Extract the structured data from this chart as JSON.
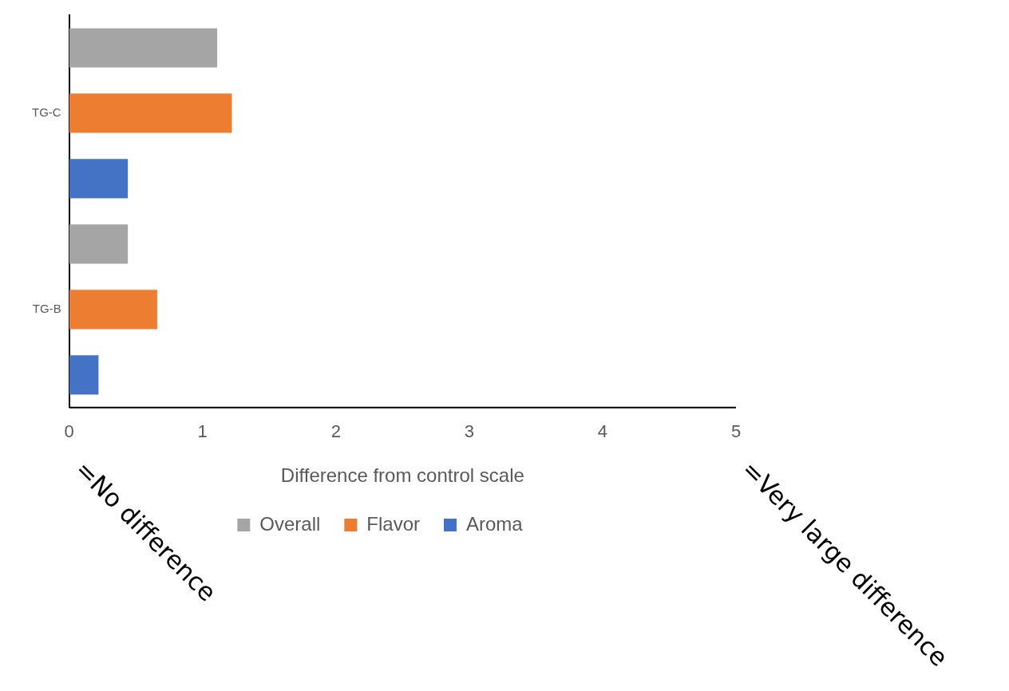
{
  "chart_data": {
    "type": "bar",
    "orientation": "horizontal",
    "categories": [
      "TG-C",
      "TG-B"
    ],
    "series": [
      {
        "name": "Overall",
        "color": "#a5a5a5",
        "values": [
          1.11,
          0.44
        ]
      },
      {
        "name": "Flavor",
        "color": "#ed7d31",
        "values": [
          1.22,
          0.66
        ]
      },
      {
        "name": "Aroma",
        "color": "#4472c4",
        "values": [
          0.44,
          0.22
        ]
      }
    ],
    "xlabel": "Difference from control scale",
    "xlim": [
      0,
      5
    ],
    "xticks": [
      0,
      1,
      2,
      3,
      4,
      5
    ],
    "grid": false,
    "legend": "bottom",
    "annotations": [
      "=No difference",
      "=Very large difference"
    ]
  }
}
